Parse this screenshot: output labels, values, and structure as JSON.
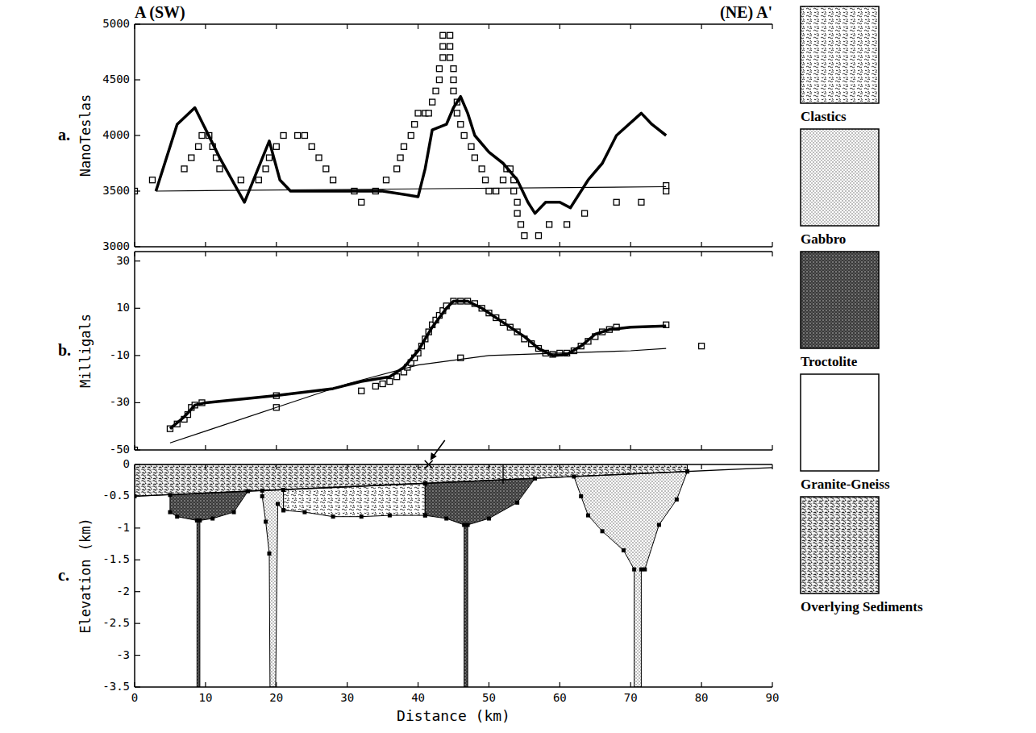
{
  "chart_data": [
    {
      "type": "line",
      "panel": "a.",
      "title_left": "A (SW)",
      "title_right": "(NE) A'",
      "y_label": "NanoTeslas",
      "xlim": [
        0,
        90
      ],
      "xticks": [
        0,
        10,
        20,
        30,
        40,
        50,
        60,
        70,
        80,
        90
      ],
      "ylim": [
        3000,
        5000
      ],
      "yticks": [
        3000,
        3500,
        4000,
        4500,
        5000
      ],
      "tick_labels": "y",
      "series": [
        {
          "type": "scatter",
          "marker": "square",
          "x": [
            0,
            2.5,
            7,
            8,
            9,
            9.5,
            10.5,
            11,
            11.5,
            12,
            15,
            17.5,
            18.5,
            19,
            20,
            21,
            23,
            24,
            25,
            26,
            27,
            28,
            31,
            32,
            34,
            35.5,
            37,
            37.5,
            38,
            39,
            39.5,
            40,
            41,
            41.5,
            42,
            42.5,
            43,
            43,
            43.5,
            43.5,
            43.5,
            44.5,
            44.5,
            44.5,
            45,
            45,
            45,
            45.5,
            45.5,
            46,
            46.5,
            47.5,
            48,
            49,
            49.5,
            50,
            51,
            52,
            52.5,
            53,
            53.5,
            53.5,
            54,
            54,
            54.5,
            55,
            57,
            58.5,
            61,
            63.5,
            68,
            71.5,
            75,
            75
          ],
          "values": [
            3500,
            3600,
            3700,
            3800,
            3900,
            4000,
            4000,
            3900,
            3800,
            3700,
            3600,
            3600,
            3700,
            3800,
            3900,
            4000,
            4000,
            4000,
            3900,
            3800,
            3700,
            3600,
            3500,
            3400,
            3500,
            3600,
            3700,
            3800,
            3900,
            4000,
            4100,
            4200,
            4200,
            4200,
            4300,
            4400,
            4500,
            4600,
            4700,
            4800,
            4900,
            4900,
            4800,
            4700,
            4600,
            4500,
            4400,
            4300,
            4200,
            4100,
            4000,
            3900,
            3800,
            3700,
            3600,
            3500,
            3500,
            3600,
            3700,
            3700,
            3600,
            3500,
            3400,
            3300,
            3200,
            3100,
            3100,
            3200,
            3200,
            3300,
            3400,
            3400,
            3500,
            3550
          ]
        },
        {
          "type": "line",
          "line_style": "thick",
          "x": [
            3,
            6,
            8.5,
            12,
            15.5,
            19,
            20.5,
            22,
            30,
            35,
            40,
            41,
            42,
            44,
            45,
            46,
            47,
            48,
            50,
            52,
            54,
            55.5,
            56.5,
            58,
            60,
            61.5,
            64,
            66,
            68,
            71.5,
            73,
            75
          ],
          "values": [
            3500,
            4100,
            4250,
            3800,
            3400,
            3950,
            3600,
            3500,
            3500,
            3500,
            3450,
            3700,
            4050,
            4100,
            4250,
            4350,
            4200,
            4000,
            3850,
            3750,
            3600,
            3400,
            3300,
            3400,
            3400,
            3350,
            3600,
            3750,
            4000,
            4200,
            4100,
            4000
          ]
        },
        {
          "type": "line",
          "line_style": "thin",
          "x": [
            3,
            75
          ],
          "values": [
            3500,
            3540
          ]
        }
      ]
    },
    {
      "type": "line",
      "panel": "b.",
      "y_label": "Milligals",
      "xlim": [
        0,
        90
      ],
      "xticks": [
        0,
        10,
        20,
        30,
        40,
        50,
        60,
        70,
        80,
        90
      ],
      "ylim": [
        -50,
        34
      ],
      "yticks": [
        -50,
        -30,
        -10,
        10,
        30
      ],
      "tick_labels": "y",
      "series": [
        {
          "type": "scatter",
          "marker": "square",
          "x": [
            0,
            5,
            6,
            7,
            7.5,
            8,
            8.5,
            9.5,
            20,
            20,
            32,
            34,
            35,
            36,
            37,
            38,
            38.5,
            39,
            39.5,
            40,
            40.5,
            41,
            41.5,
            42,
            42.5,
            43,
            43.5,
            44,
            45,
            46,
            46,
            47,
            48,
            49,
            50,
            51,
            52,
            53,
            54,
            55,
            56,
            57,
            58,
            59,
            60,
            61,
            62,
            63,
            64,
            65,
            66,
            67,
            68,
            75,
            80
          ],
          "values": [
            -50,
            -41,
            -39,
            -37,
            -35,
            -32,
            -31,
            -30,
            -27,
            -32,
            -25,
            -23,
            -22,
            -21,
            -19,
            -17,
            -15,
            -13,
            -11,
            -9,
            -6,
            -3,
            0,
            3,
            5,
            7,
            9,
            11,
            13,
            13,
            -11,
            13,
            12,
            10,
            8,
            6,
            4,
            2,
            0,
            -3,
            -5,
            -7,
            -9,
            -9.5,
            -9,
            -9,
            -8,
            -6,
            -4,
            -2,
            0,
            1,
            2,
            3,
            -6
          ]
        },
        {
          "type": "line",
          "line_style": "thick",
          "x": [
            5,
            7,
            8.5,
            10,
            20,
            28,
            32,
            36,
            38,
            40,
            42,
            44,
            45,
            47,
            49,
            52,
            55,
            57,
            59,
            61,
            63,
            65,
            67,
            70,
            75
          ],
          "values": [
            -41,
            -36,
            -31,
            -30,
            -27,
            -24,
            -21,
            -19,
            -15,
            -8,
            2,
            10,
            13,
            13,
            10,
            4,
            -2,
            -7,
            -10,
            -9.5,
            -6,
            -1,
            1,
            2,
            2.5
          ]
        },
        {
          "type": "line",
          "line_style": "thin",
          "x": [
            5,
            10,
            20,
            30,
            40,
            50,
            60,
            70,
            75
          ],
          "values": [
            -47,
            -42,
            -32,
            -22,
            -14,
            -10,
            -9,
            -8,
            -7
          ]
        }
      ]
    },
    {
      "type": "cross_section",
      "panel": "c.",
      "y_label": "Elevation (km)",
      "x_label": "Distance (km)",
      "xlim": [
        0,
        90
      ],
      "xticks": [
        0,
        10,
        20,
        30,
        40,
        50,
        60,
        70,
        80,
        90
      ],
      "ylim": [
        -3.5,
        0
      ],
      "yticks": [
        -3.5,
        -3,
        -2.5,
        -2,
        -1.5,
        -1,
        -0.5,
        0
      ],
      "legend": "right",
      "legend_items": [
        "Clastics",
        "Gabbro",
        "Troctolite",
        "Granite-Gneiss",
        "Overlying Sediments"
      ],
      "bodies": [
        {
          "lithology": "Overlying Sediments",
          "points": [
            [
              0,
              0
            ],
            [
              78,
              0
            ],
            [
              78,
              -0.11
            ],
            [
              0,
              -0.5
            ]
          ]
        },
        {
          "lithology": "Clastics",
          "points": [
            [
              21,
              -0.4
            ],
            [
              41,
              -0.3
            ],
            [
              41,
              -0.8
            ],
            [
              36,
              -0.8
            ],
            [
              32,
              -0.82
            ],
            [
              28,
              -0.82
            ],
            [
              24,
              -0.75
            ],
            [
              21,
              -0.72
            ]
          ]
        },
        {
          "lithology": "Troctolite",
          "points": [
            [
              5,
              -0.48
            ],
            [
              16,
              -0.42
            ],
            [
              14,
              -0.75
            ],
            [
              11,
              -0.85
            ],
            [
              9.2,
              -0.88
            ],
            [
              9.2,
              -3.5
            ],
            [
              8.8,
              -3.5
            ],
            [
              8.8,
              -0.88
            ],
            [
              6,
              -0.82
            ],
            [
              5,
              -0.75
            ]
          ]
        },
        {
          "lithology": "Troctolite",
          "points": [
            [
              41,
              -0.3
            ],
            [
              56.5,
              -0.22
            ],
            [
              54,
              -0.6
            ],
            [
              50,
              -0.85
            ],
            [
              47,
              -0.95
            ],
            [
              47,
              -3.5
            ],
            [
              46.5,
              -3.5
            ],
            [
              46.5,
              -0.95
            ],
            [
              44,
              -0.85
            ],
            [
              41,
              -0.8
            ]
          ]
        },
        {
          "lithology": "Gabbro",
          "points": [
            [
              18,
              -0.41
            ],
            [
              21,
              -0.4
            ],
            [
              21,
              -0.72
            ],
            [
              20.2,
              -0.62
            ],
            [
              19.9,
              -3.5
            ],
            [
              19.1,
              -3.5
            ],
            [
              19,
              -1.4
            ],
            [
              18.5,
              -0.9
            ],
            [
              18,
              -0.5
            ]
          ]
        },
        {
          "lithology": "Gabbro",
          "points": [
            [
              62,
              -0.19
            ],
            [
              78,
              -0.11
            ],
            [
              76.5,
              -0.55
            ],
            [
              74,
              -0.95
            ],
            [
              72,
              -1.65
            ],
            [
              71.5,
              -1.65
            ],
            [
              71.5,
              -3.5
            ],
            [
              70.5,
              -3.5
            ],
            [
              70.5,
              -1.65
            ],
            [
              69,
              -1.35
            ],
            [
              66,
              -1.05
            ],
            [
              64,
              -0.8
            ],
            [
              63,
              -0.5
            ]
          ]
        }
      ],
      "lines": [
        {
          "points": [
            [
              0,
              -0.5
            ],
            [
              90,
              -0.05
            ]
          ]
        },
        {
          "points": [
            [
              52,
              0
            ],
            [
              52,
              -0.3
            ]
          ]
        }
      ],
      "markers": [
        {
          "x": 41.5,
          "y": 0
        }
      ]
    }
  ]
}
